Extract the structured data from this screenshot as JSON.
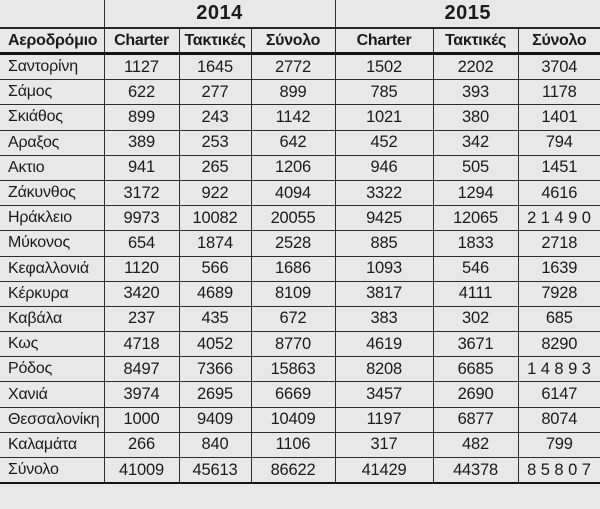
{
  "colors": {
    "background": "#e8e8e9",
    "text": "#1b1b1b",
    "grid_line": "#2d2d2d",
    "heavy_line": "#141414"
  },
  "chart_data": {
    "type": "table",
    "row_header_label": "Αεροδρόμιο",
    "year_groups": [
      "2014",
      "2015"
    ],
    "sub_columns": [
      "Charter",
      "Τακτικές",
      "Σύνολο"
    ],
    "columns": [
      "Αεροδρόμιο",
      "2014 Charter",
      "2014 Τακτικές",
      "2014 Σύνολο",
      "2015 Charter",
      "2015 Τακτικές",
      "2015 Σύνολο"
    ],
    "rows": [
      [
        "Σαντορίνη",
        1127,
        1645,
        2772,
        1502,
        2202,
        3704
      ],
      [
        "Σάμος",
        622,
        277,
        899,
        785,
        393,
        1178
      ],
      [
        "Σκιάθος",
        899,
        243,
        1142,
        1021,
        380,
        1401
      ],
      [
        "Αραξος",
        389,
        253,
        642,
        452,
        342,
        794
      ],
      [
        "Ακτιο",
        941,
        265,
        1206,
        946,
        505,
        1451
      ],
      [
        "Ζάκυνθος",
        3172,
        922,
        4094,
        3322,
        1294,
        4616
      ],
      [
        "Ηράκλειο",
        9973,
        10082,
        20055,
        9425,
        12065,
        21490
      ],
      [
        "Μύκονος",
        654,
        1874,
        2528,
        885,
        1833,
        2718
      ],
      [
        "Κεφαλλονιά",
        1120,
        566,
        1686,
        1093,
        546,
        1639
      ],
      [
        "Κέρκυρα",
        3420,
        4689,
        8109,
        3817,
        4111,
        7928
      ],
      [
        "Καβάλα",
        237,
        435,
        672,
        383,
        302,
        685
      ],
      [
        "Κως",
        4718,
        4052,
        8770,
        4619,
        3671,
        8290
      ],
      [
        "Ρόδος",
        8497,
        7366,
        15863,
        8208,
        6685,
        14893
      ],
      [
        "Χανιά",
        3974,
        2695,
        6669,
        3457,
        2690,
        6147
      ],
      [
        "Θεσσαλονίκη",
        1000,
        9409,
        10409,
        1197,
        6877,
        8074
      ],
      [
        "Καλαμάτα",
        266,
        840,
        1106,
        317,
        482,
        799
      ],
      [
        "Σύνολο",
        41009,
        45613,
        86622,
        41429,
        44378,
        85807
      ]
    ]
  }
}
